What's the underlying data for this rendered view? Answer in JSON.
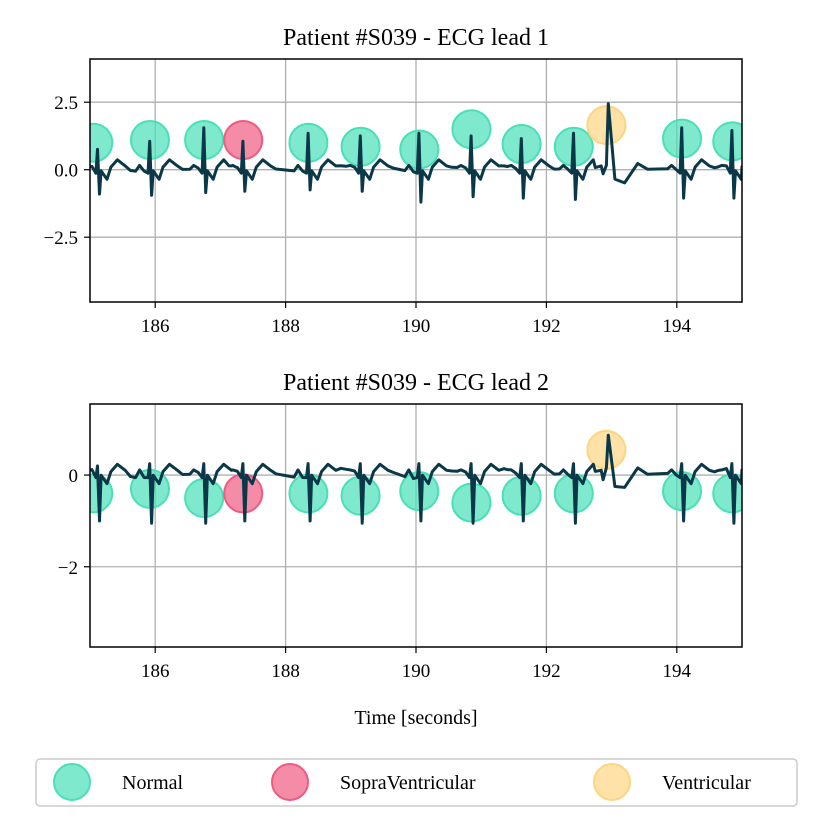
{
  "chart_data": [
    {
      "type": "line",
      "title": "Patient #S039 - ECG lead 1",
      "xlabel": "",
      "ylabel": "",
      "xlim": [
        185,
        195
      ],
      "ylim": [
        -4.9,
        4.1
      ],
      "xticks": [
        186,
        188,
        190,
        192,
        194
      ],
      "yticks": [
        -2.5,
        0.0,
        2.5
      ],
      "ytick_labels": [
        "−2.5",
        "0.0",
        "2.5"
      ],
      "grid": true,
      "baseline": 0.05,
      "beats": [
        {
          "x": 185.12,
          "up": 0.7,
          "down": -0.95
        },
        {
          "x": 185.92,
          "up": 1.0,
          "down": -1.0
        },
        {
          "x": 186.75,
          "up": 1.5,
          "down": -0.9
        },
        {
          "x": 187.35,
          "up": 1.0,
          "down": -0.85
        },
        {
          "x": 188.35,
          "up": 1.3,
          "down": -0.8
        },
        {
          "x": 189.15,
          "up": 1.2,
          "down": -0.85
        },
        {
          "x": 190.05,
          "up": 1.3,
          "down": -1.25
        },
        {
          "x": 190.85,
          "up": 1.2,
          "down": -1.05
        },
        {
          "x": 191.62,
          "up": 1.1,
          "down": -1.1
        },
        {
          "x": 192.42,
          "up": 1.3,
          "down": -1.15
        },
        {
          "x": 192.95,
          "up": 2.4,
          "down": -0.2,
          "ventricular": true
        },
        {
          "x": 194.08,
          "up": 1.5,
          "down": -1.1
        },
        {
          "x": 194.85,
          "up": 1.4,
          "down": -1.1
        }
      ],
      "series": [
        {
          "name": "Normal",
          "color": "#48e0b8",
          "x": [
            185.05,
            185.92,
            186.75,
            188.35,
            189.15,
            190.05,
            190.85,
            191.62,
            192.42,
            194.08,
            194.85
          ],
          "y": [
            1.0,
            1.1,
            1.1,
            1.0,
            0.85,
            0.75,
            1.5,
            0.95,
            0.85,
            1.15,
            1.05
          ]
        },
        {
          "name": "SopraVentricular",
          "color": "#ef5a82",
          "x": [
            187.35
          ],
          "y": [
            1.1
          ]
        },
        {
          "name": "Ventricular",
          "color": "#fdd581",
          "x": [
            192.92
          ],
          "y": [
            1.65
          ]
        }
      ]
    },
    {
      "type": "line",
      "title": "Patient #S039 - ECG lead 2",
      "xlabel": "Time [seconds]",
      "ylabel": "",
      "xlim": [
        185,
        195
      ],
      "ylim": [
        -3.75,
        1.55
      ],
      "xticks": [
        186,
        188,
        190,
        192,
        194
      ],
      "yticks": [
        -2,
        0
      ],
      "ytick_labels": [
        "−2",
        "0"
      ],
      "grid": true,
      "baseline": 0.05,
      "beats": [
        {
          "x": 185.12,
          "up": 0.15,
          "down": -1.05
        },
        {
          "x": 185.92,
          "up": 0.2,
          "down": -1.1
        },
        {
          "x": 186.75,
          "up": 0.2,
          "down": -1.1
        },
        {
          "x": 187.35,
          "up": 0.2,
          "down": -1.05
        },
        {
          "x": 188.35,
          "up": 0.2,
          "down": -1.05
        },
        {
          "x": 189.15,
          "up": 0.2,
          "down": -1.1
        },
        {
          "x": 190.05,
          "up": 0.2,
          "down": -1.05
        },
        {
          "x": 190.85,
          "up": 0.2,
          "down": -1.1
        },
        {
          "x": 191.62,
          "up": 0.2,
          "down": -1.05
        },
        {
          "x": 192.42,
          "up": 0.2,
          "down": -1.1
        },
        {
          "x": 192.95,
          "up": 0.82,
          "down": -0.15,
          "ventricular": true
        },
        {
          "x": 194.08,
          "up": 0.2,
          "down": -1.05
        },
        {
          "x": 194.85,
          "up": 0.2,
          "down": -1.1
        }
      ],
      "series": [
        {
          "name": "Normal",
          "color": "#48e0b8",
          "x": [
            185.05,
            185.92,
            186.75,
            188.35,
            189.15,
            190.05,
            190.85,
            191.62,
            192.42,
            194.08,
            194.85
          ],
          "y": [
            -0.4,
            -0.3,
            -0.5,
            -0.4,
            -0.45,
            -0.35,
            -0.6,
            -0.45,
            -0.4,
            -0.35,
            -0.4
          ]
        },
        {
          "name": "SopraVentricular",
          "color": "#ef5a82",
          "x": [
            187.35
          ],
          "y": [
            -0.4
          ]
        },
        {
          "name": "Ventricular",
          "color": "#fdd581",
          "x": [
            192.92
          ],
          "y": [
            0.55
          ]
        }
      ]
    }
  ],
  "legend": {
    "placement": "bottom",
    "entries": [
      {
        "label": "Normal",
        "color": "#48e0b8"
      },
      {
        "label": "SopraVentricular",
        "color": "#ef5a82"
      },
      {
        "label": "Ventricular",
        "color": "#fdd581"
      }
    ]
  },
  "trace_color": "#0b3848",
  "grid_color": "#b0b0b0"
}
